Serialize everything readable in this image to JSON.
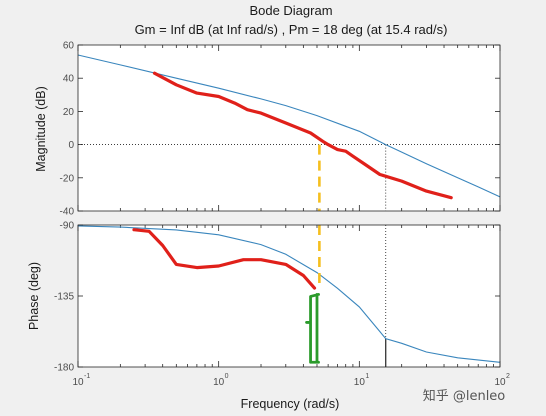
{
  "title": "Bode Diagram",
  "subtitle": "Gm = Inf dB (at Inf rad/s) ,  Pm = 18 deg (at 15.4 rad/s)",
  "watermark": "知乎 @lenleo",
  "colors": {
    "series": "#3a86bd",
    "annotation_red": "#e0201a",
    "annotation_yellow": "#f5bf1f",
    "annotation_green": "#2b9b2b",
    "marker": "#333333",
    "frame": "#262626",
    "text": "#1a1a1a",
    "tick_text": "#4d4d4d",
    "pane": "#f0f0f0"
  },
  "chart_data": [
    {
      "type": "line",
      "xscale": "log",
      "xlim": [
        0.1,
        100
      ],
      "ylim": [
        -40,
        60
      ],
      "xlabel": "Frequency  (rad/s)",
      "ylabel": "Magnitude (dB)",
      "xticks": [
        0.1,
        1,
        10,
        100
      ],
      "xticklabels": [
        "10",
        "10",
        "10",
        "10"
      ],
      "xtick_exponents": [
        "-1",
        "0",
        "1",
        "2"
      ],
      "yticks": [
        -40,
        -20,
        0,
        20,
        40,
        60
      ],
      "yticklabels": [
        "-40",
        "-20",
        "0",
        "20",
        "40",
        "60"
      ],
      "reference_line": 0,
      "crossover_marker": {
        "x": 15.4,
        "y": 0
      },
      "series": [
        {
          "x": [
            0.1,
            0.2,
            0.5,
            1,
            2,
            3,
            5,
            8,
            10,
            15.4,
            20,
            30,
            50,
            70,
            100
          ],
          "y": [
            54,
            48,
            40,
            34,
            27.5,
            23.5,
            17.5,
            11,
            8,
            0,
            -4.5,
            -11.5,
            -20,
            -25.5,
            -31.5
          ]
        }
      ],
      "annotations": {
        "red_sketch": {
          "x": [
            0.35,
            0.5,
            0.7,
            1,
            1.3,
            1.6,
            2,
            3,
            4.5,
            5.5,
            6,
            7,
            8,
            9,
            11,
            14,
            20,
            30,
            45
          ],
          "y": [
            43,
            36,
            31,
            29,
            25,
            21,
            19,
            13,
            7,
            2,
            0,
            -3,
            -4,
            -7,
            -12,
            -18,
            -22,
            -28,
            -32
          ]
        },
        "yellow_dashes": {
          "x": 5.2,
          "y_from": 0,
          "y_to": -40
        }
      }
    },
    {
      "type": "line",
      "xscale": "log",
      "xlim": [
        0.1,
        100
      ],
      "ylim": [
        -180,
        -90
      ],
      "xlabel": "Frequency  (rad/s)",
      "ylabel": "Phase (deg)",
      "xticks": [
        0.1,
        1,
        10,
        100
      ],
      "yticks": [
        -180,
        -135,
        -90
      ],
      "yticklabels": [
        "-180",
        "-135",
        "-90"
      ],
      "crossover_marker": {
        "x": 15.4,
        "y": -162
      },
      "series": [
        {
          "x": [
            0.1,
            0.2,
            0.5,
            1,
            2,
            3,
            5,
            7,
            10,
            15.4,
            20,
            30,
            50,
            100
          ],
          "y": [
            -90.6,
            -91.3,
            -93.1,
            -96.2,
            -102.4,
            -108.6,
            -120.2,
            -130.1,
            -141.9,
            -162,
            -165,
            -170.5,
            -174.2,
            -177
          ]
        }
      ],
      "annotations": {
        "red_sketch": {
          "x": [
            0.25,
            0.32,
            0.4,
            0.5,
            0.7,
            1,
            1.5,
            2,
            3,
            4,
            4.8
          ],
          "y": [
            -93,
            -94,
            -103,
            -115,
            -117,
            -116,
            -112,
            -112,
            -115,
            -122,
            -130
          ]
        },
        "yellow_dashes": {
          "x": 5.2,
          "y_from": -90,
          "y_to": -128
        },
        "green_bracket": {
          "x": [
            4.5,
            5.0
          ],
          "y_from": -134,
          "y_to": -177
        }
      }
    }
  ]
}
